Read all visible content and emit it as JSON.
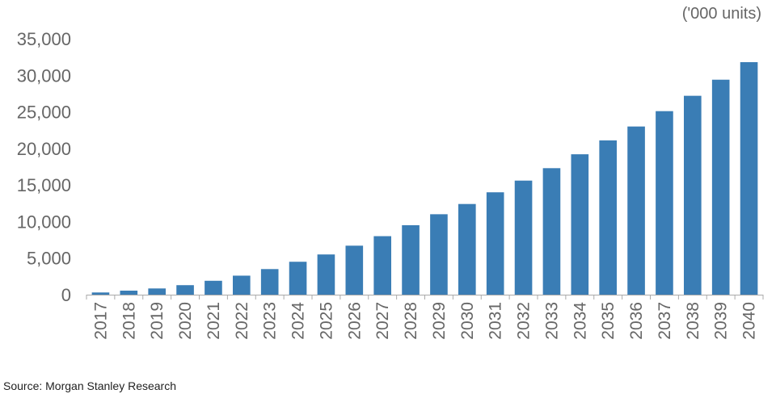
{
  "chart_data": {
    "type": "bar",
    "unit_label": "('000 units)",
    "source": "Source: Morgan Stanley Research",
    "categories": [
      "2017",
      "2018",
      "2019",
      "2020",
      "2021",
      "2022",
      "2023",
      "2024",
      "2025",
      "2026",
      "2027",
      "2028",
      "2029",
      "2030",
      "2031",
      "2032",
      "2033",
      "2034",
      "2035",
      "2036",
      "2037",
      "2038",
      "2039",
      "2040"
    ],
    "values": [
      300,
      550,
      850,
      1300,
      1900,
      2600,
      3500,
      4500,
      5500,
      6700,
      8000,
      9500,
      11000,
      12400,
      14000,
      15600,
      17300,
      19200,
      21100,
      23000,
      25100,
      27200,
      29400,
      31800
    ],
    "ylim": [
      0,
      35000
    ],
    "yticks": [
      0,
      5000,
      10000,
      15000,
      20000,
      25000,
      30000,
      35000
    ],
    "ytick_labels": [
      "0",
      "5,000",
      "10,000",
      "15,000",
      "20,000",
      "25,000",
      "30,000",
      "35,000"
    ],
    "grid": false,
    "bar_color": "#3A7DB5",
    "axis_color": "#AAAAAA",
    "tick_text_color": "#666666"
  }
}
